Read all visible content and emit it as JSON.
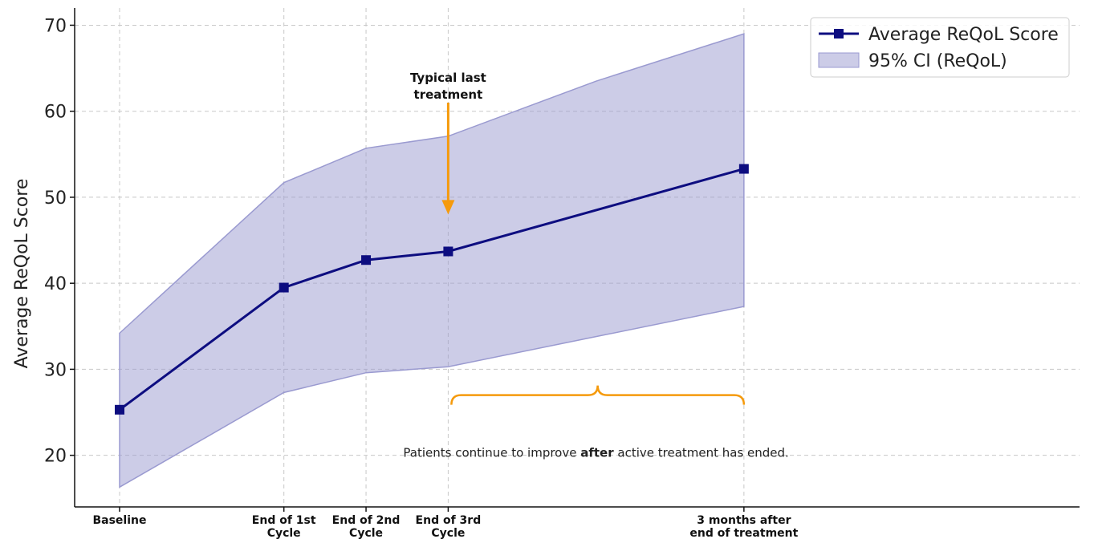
{
  "chart_data": {
    "type": "line",
    "title": "",
    "xlabel": "",
    "ylabel": "Average ReQoL Score",
    "ylim": [
      14,
      72
    ],
    "y_ticks": [
      20,
      30,
      40,
      50,
      60,
      70
    ],
    "grid": true,
    "legend_position": "top-right",
    "categories": [
      [
        "Baseline"
      ],
      [
        "End of 1st",
        "Cycle"
      ],
      [
        "End of 2nd",
        "Cycle"
      ],
      [
        "End of 3rd",
        "Cycle"
      ],
      [
        "3 months after",
        "end of treatment"
      ]
    ],
    "x_positions": [
      0,
      2,
      3,
      4,
      7.6
    ],
    "series": [
      {
        "name": "Average ReQoL Score",
        "values": [
          25.3,
          39.5,
          42.7,
          43.7,
          53.3
        ],
        "color": "#0d0d80",
        "marker": "square"
      }
    ],
    "ci_band": {
      "name": "95% CI (ReQoL)",
      "x_positions": [
        0,
        2,
        3,
        4,
        5.8,
        7.6
      ],
      "lower": [
        16.3,
        27.3,
        29.6,
        30.3,
        33.8,
        37.3
      ],
      "upper": [
        34.2,
        51.7,
        55.7,
        57.1,
        63.5,
        69.0
      ],
      "color": "#9a9ad0"
    },
    "annotations": {
      "arrow": {
        "label_lines": [
          "Typical last",
          "treatment"
        ],
        "x_position": 4,
        "y_from": 61.0,
        "y_to": 48.0,
        "color": "#f59a0c"
      },
      "brace": {
        "x_from": 4,
        "x_to": 7.6,
        "y": 27.0,
        "color": "#f59a0c"
      },
      "note": {
        "before": "Patients continue to improve ",
        "bold": "after",
        "after": " active treatment has ended.",
        "x_position": 5.8,
        "y": 20.3
      }
    }
  }
}
